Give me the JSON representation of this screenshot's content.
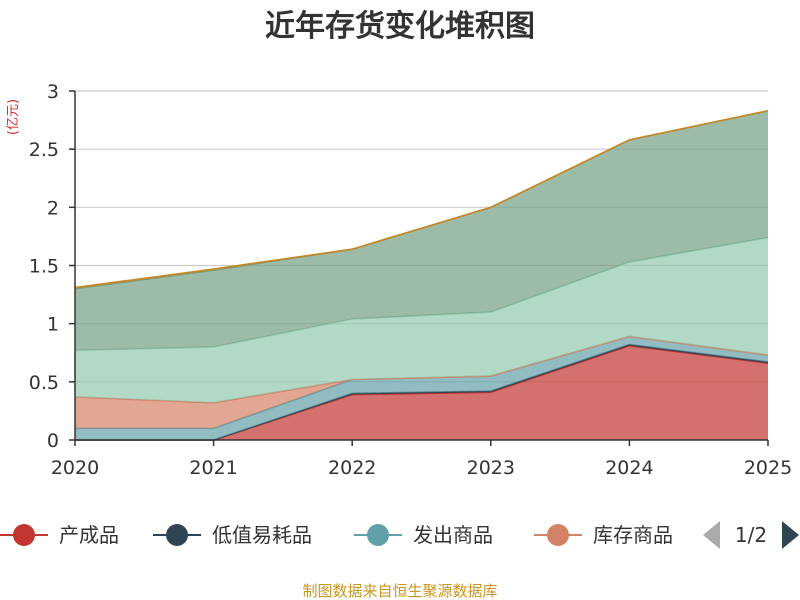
{
  "chart_data": {
    "type": "area",
    "stacked": true,
    "title": "近年存货变化堆积图",
    "ylabel": "(亿元)",
    "xlabel": "",
    "categories": [
      "2020",
      "2021",
      "2022",
      "2023",
      "2024",
      "2025"
    ],
    "ylim": [
      0,
      3
    ],
    "yticks": [
      "0",
      "0.5",
      "1",
      "1.5",
      "2",
      "2.5",
      "3"
    ],
    "grid": true,
    "series": [
      {
        "name": "产成品",
        "color": "#c23531",
        "values": [
          0,
          0,
          0.39,
          0.41,
          0.81,
          0.66
        ]
      },
      {
        "name": "低值易耗品",
        "color": "#2f4554",
        "values": [
          0,
          0,
          0.01,
          0.01,
          0.01,
          0.01
        ]
      },
      {
        "name": "发出商品",
        "color": "#61a0a8",
        "values": [
          0.1,
          0.1,
          0.12,
          0.13,
          0.07,
          0.06
        ]
      },
      {
        "name": "库存商品",
        "color": "#d48265",
        "values": [
          0.27,
          0.22,
          0.0,
          0.0,
          0.0,
          0.0
        ]
      },
      {
        "color": "#91c7ae",
        "values": [
          0.4,
          0.48,
          0.52,
          0.55,
          0.64,
          1.01
        ]
      },
      {
        "color": "#749f83",
        "values": [
          0.53,
          0.66,
          0.6,
          0.9,
          1.05,
          1.09
        ]
      },
      {
        "color": "#ca8622",
        "values": [
          0.01,
          0.01,
          0.0,
          0.0,
          0.0,
          0.0
        ]
      }
    ]
  },
  "legend": {
    "items": [
      "产成品",
      "低值易耗品",
      "发出商品",
      "库存商品"
    ],
    "page": "1/2"
  },
  "source": "制图数据来自恒生聚源数据库"
}
